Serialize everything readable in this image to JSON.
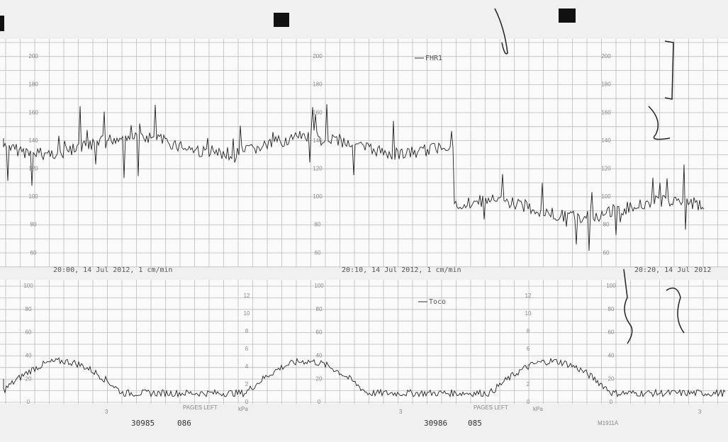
{
  "strip": {
    "fhr_scale": [
      "200",
      "180",
      "160",
      "140",
      "120",
      "100",
      "80",
      "60"
    ],
    "toco_scale": [
      "100",
      "80",
      "60",
      "40",
      "20",
      "0"
    ],
    "kpa_scale": [
      "12",
      "10",
      "8",
      "6",
      "4",
      "2",
      "0"
    ],
    "fhr_legend": "FHR1",
    "toco_legend": "Toco",
    "timestamps": [
      "20:00, 14 Jul 2012, 1 cm/min",
      "20:10, 14 Jul 2012, 1 cm/min",
      "20:20, 14 Jul 2012"
    ],
    "pages_left": [
      "PAGES LEFT",
      "PAGES LEFT"
    ],
    "kpa_unit": [
      "kPa",
      "kPa"
    ],
    "page_marks": [
      "3",
      "3",
      "3"
    ],
    "footer": [
      {
        "serial": "30985",
        "page": "086"
      },
      {
        "serial": "30986",
        "page": "085"
      }
    ],
    "model": "M1911A"
  }
}
